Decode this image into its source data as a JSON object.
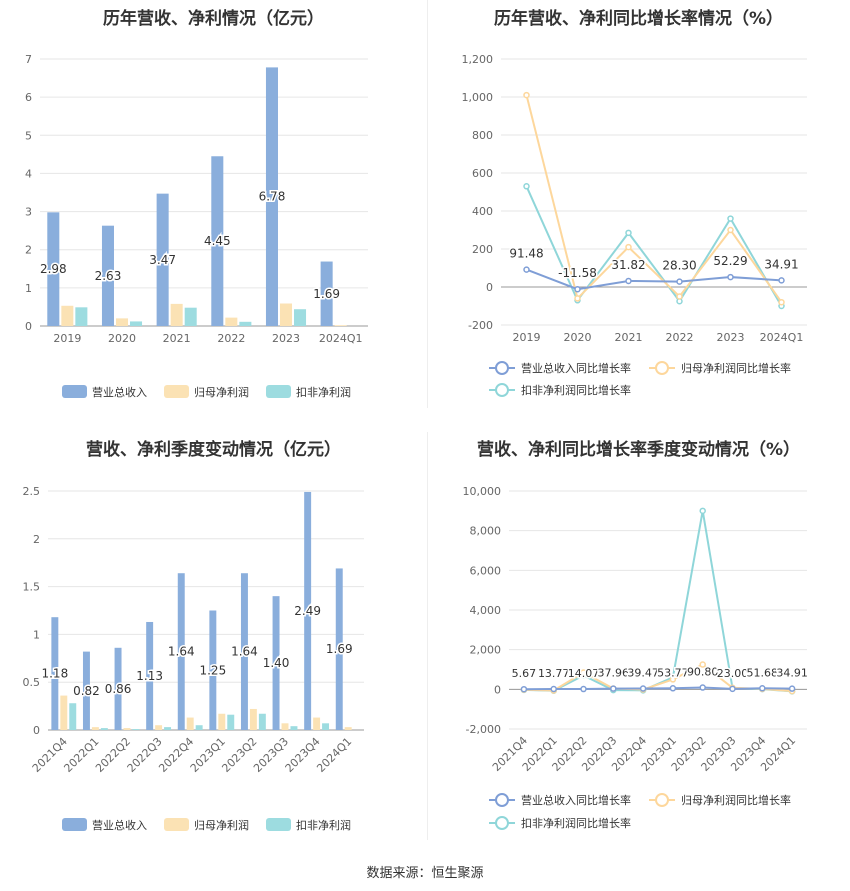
{
  "colors": {
    "revenue": "#8aaedc",
    "net_profit": "#fbe2b4",
    "deducted_profit": "#9ddce0",
    "revenue_growth_line": "#7f9ed6",
    "net_profit_growth_line": "#fdd79c",
    "deducted_profit_growth_line": "#8fd6d9",
    "axis_text": "#666666",
    "grid": "#e6e6e6"
  },
  "source": "数据来源：恒生聚源",
  "chart_data": [
    {
      "type": "bar",
      "title": "历年营收、净利情况（亿元）",
      "categories": [
        "2019",
        "2020",
        "2021",
        "2022",
        "2023",
        "2024Q1"
      ],
      "ylim": [
        0,
        7
      ],
      "yticks": [
        "0",
        "1",
        "2",
        "3",
        "4",
        "5",
        "6",
        "7"
      ],
      "grid": true,
      "legend_position": "bottom",
      "series": [
        {
          "name": "营业总收入",
          "values": [
            2.98,
            2.63,
            3.47,
            4.45,
            6.78,
            1.69
          ],
          "labels": [
            "2.98",
            "2.63",
            "3.47",
            "4.45",
            "6.78",
            "1.69"
          ]
        },
        {
          "name": "归母净利润",
          "values": [
            0.53,
            0.2,
            0.58,
            0.22,
            0.59,
            0.02
          ]
        },
        {
          "name": "扣非净利润",
          "values": [
            0.49,
            0.12,
            0.48,
            0.11,
            0.44,
            0.0
          ]
        }
      ]
    },
    {
      "type": "line",
      "title": "历年营收、净利同比增长率情况（%）",
      "categories": [
        "2019",
        "2020",
        "2021",
        "2022",
        "2023",
        "2024Q1"
      ],
      "ylim": [
        -200,
        1200
      ],
      "yticks": [
        "-200",
        "0",
        "200",
        "400",
        "600",
        "800",
        "1,000",
        "1,200"
      ],
      "grid": true,
      "legend_position": "bottom",
      "series": [
        {
          "name": "营业总收入同比增长率",
          "values": [
            91.48,
            -11.58,
            31.82,
            28.3,
            52.29,
            34.91
          ],
          "labels": [
            "91.48",
            "-11.58",
            "31.82",
            "28.30",
            "52.29",
            "34.91"
          ]
        },
        {
          "name": "归母净利润同比增长率",
          "values": [
            1010,
            -60,
            210,
            -50,
            300,
            -80
          ]
        },
        {
          "name": "扣非净利润同比增长率",
          "values": [
            530,
            -70,
            285,
            -75,
            360,
            -100
          ]
        }
      ]
    },
    {
      "type": "bar",
      "title": "营收、净利季度变动情况（亿元）",
      "categories": [
        "2021Q4",
        "2022Q1",
        "2022Q2",
        "2022Q3",
        "2022Q4",
        "2023Q1",
        "2023Q2",
        "2023Q3",
        "2023Q4",
        "2024Q1"
      ],
      "ylim": [
        0,
        2.5
      ],
      "yticks": [
        "0",
        "0.5",
        "1",
        "1.5",
        "2",
        "2.5"
      ],
      "grid": true,
      "legend_position": "bottom",
      "series": [
        {
          "name": "营业总收入",
          "values": [
            1.18,
            0.82,
            0.86,
            1.13,
            1.64,
            1.25,
            1.64,
            1.4,
            2.49,
            1.69
          ],
          "labels": [
            "1.18",
            "0.82",
            "0.86",
            "1.13",
            "1.64",
            "1.25",
            "1.64",
            "1.40",
            "2.49",
            "1.69"
          ]
        },
        {
          "name": "归母净利润",
          "values": [
            0.36,
            0.03,
            0.02,
            0.05,
            0.13,
            0.17,
            0.22,
            0.07,
            0.13,
            0.03
          ]
        },
        {
          "name": "扣非净利润",
          "values": [
            0.28,
            0.02,
            0.01,
            0.03,
            0.05,
            0.16,
            0.17,
            0.04,
            0.07,
            0.0
          ]
        }
      ]
    },
    {
      "type": "line",
      "title": "营收、净利同比增长率季度变动情况（%）",
      "categories": [
        "2021Q4",
        "2022Q1",
        "2022Q2",
        "2022Q3",
        "2022Q4",
        "2023Q1",
        "2023Q2",
        "2023Q3",
        "2023Q4",
        "2024Q1"
      ],
      "ylim": [
        -2000,
        10000
      ],
      "yticks": [
        "-2,000",
        "0",
        "2,000",
        "4,000",
        "6,000",
        "8,000",
        "10,000"
      ],
      "grid": true,
      "legend_position": "bottom",
      "series": [
        {
          "name": "营业总收入同比增长率",
          "values": [
            5.67,
            13.77,
            14.07,
            37.96,
            39.47,
            53.77,
            90.8,
            23.0,
            51.68,
            34.91
          ],
          "labels": [
            "5.67",
            "13.77",
            "14.07",
            "37.96",
            "39.47",
            "53.77",
            "90.80",
            "23.00",
            "51.68",
            "34.91"
          ]
        },
        {
          "name": "归母净利润同比增长率",
          "values": [
            -20,
            -60,
            850,
            40,
            -10,
            500,
            1250,
            80,
            20,
            -90
          ]
        },
        {
          "name": "扣非净利润同比增长率",
          "values": [
            -30,
            -70,
            700,
            -40,
            -50,
            600,
            9000,
            60,
            10,
            -100
          ]
        }
      ]
    }
  ]
}
